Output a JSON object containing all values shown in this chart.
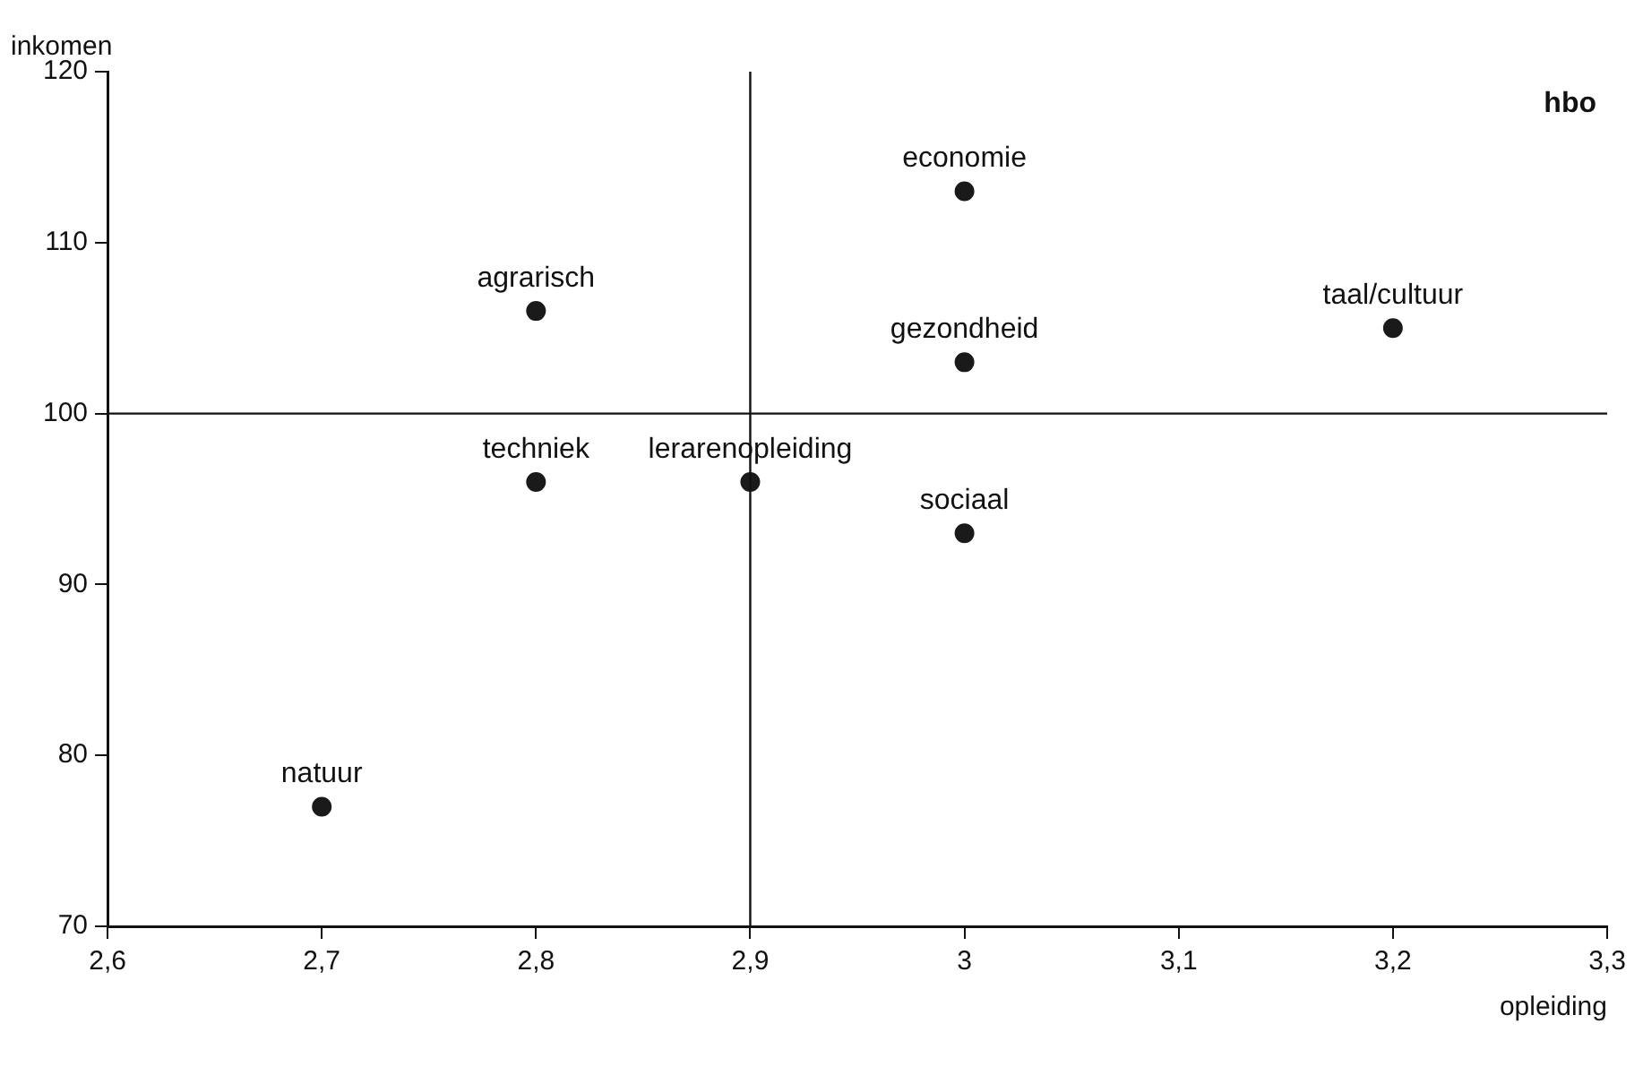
{
  "chart_data": {
    "type": "scatter",
    "xlabel": "opleiding",
    "ylabel": "inkomen",
    "annotations": [
      "hbo",
      {
        "text": "natuur",
        "x": 2.7,
        "y": 77
      },
      {
        "text": "agrarisch",
        "x": 2.8,
        "y": 106
      },
      {
        "text": "techniek",
        "x": 2.8,
        "y": 96
      },
      {
        "text": "lerarenopleiding",
        "x": 2.9,
        "y": 96
      },
      {
        "text": "economie",
        "x": 3.0,
        "y": 113
      },
      {
        "text": "gezondheid",
        "x": 3.0,
        "y": 103
      },
      {
        "text": "sociaal",
        "x": 3.0,
        "y": 93
      },
      {
        "text": "taal/cultuur",
        "x": 3.2,
        "y": 105
      }
    ],
    "x": [
      2.7,
      2.8,
      2.8,
      2.9,
      3.0,
      3.0,
      3.0,
      3.2
    ],
    "series": [
      {
        "color": "#1a1a1a",
        "values": [
          77,
          106,
          96,
          96,
          113,
          103,
          93,
          105
        ]
      }
    ],
    "xlim": [
      2.6,
      3.3
    ],
    "xticks": [
      {
        "value": 2.6,
        "label": "2,6"
      },
      {
        "value": 2.7,
        "label": "2,7"
      },
      {
        "value": 2.8,
        "label": "2,8"
      },
      {
        "value": 2.9,
        "label": "2,9"
      },
      3,
      {
        "value": 3.1,
        "label": "3,1"
      },
      {
        "value": 3.2,
        "label": "3,2"
      },
      {
        "value": 3.3,
        "label": "3,3"
      }
    ],
    "ylim": [
      70,
      120
    ],
    "yticks": [
      70,
      80,
      90,
      100,
      110,
      120
    ],
    "ref_lines": [
      {
        "axis": "x",
        "value": 2.9
      },
      {
        "axis": "y",
        "value": 100
      }
    ],
    "grid": false,
    "legend": false,
    "marker": "circle"
  }
}
